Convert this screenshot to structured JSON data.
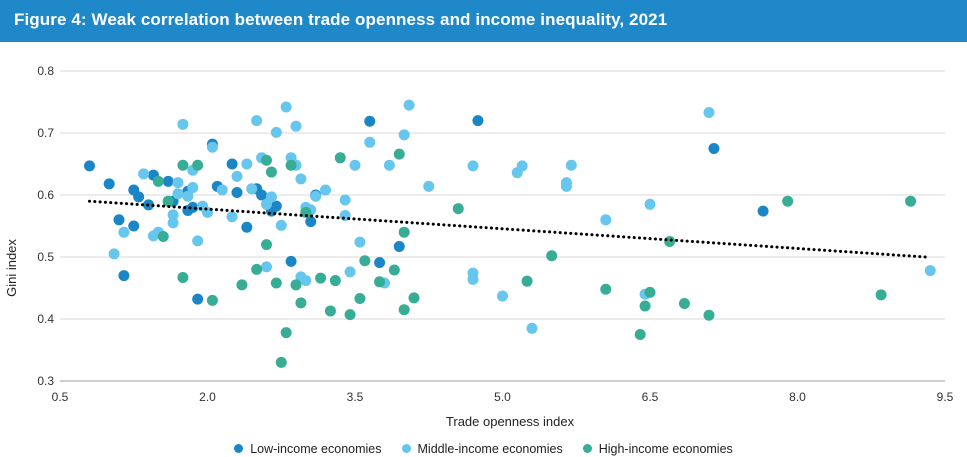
{
  "title": "Figure 4: Weak correlation between trade openness and income inequality, 2021",
  "colors": {
    "title_bar": "#1e88c8",
    "low": "#1b86c6",
    "middle": "#66c6ee",
    "high": "#36ad94",
    "trend": "#000000",
    "grid": "#d9d9d9"
  },
  "chart_data": {
    "type": "scatter",
    "xlabel": "Trade openness index",
    "ylabel": "Gini index",
    "xlim": [
      0.5,
      9.5
    ],
    "ylim": [
      0.3,
      0.8
    ],
    "xticks": [
      0.5,
      2.0,
      3.5,
      5.0,
      6.5,
      8.0,
      9.5
    ],
    "xtick_labels": [
      "0.5",
      "2.0",
      "3.5",
      "5.0",
      "6.5",
      "8.0",
      "9.5"
    ],
    "yticks": [
      0.3,
      0.4,
      0.5,
      0.6,
      0.7,
      0.8
    ],
    "ytick_labels": [
      "0.3",
      "0.4",
      "0.5",
      "0.6",
      "0.7",
      "0.8"
    ],
    "grid": "horizontal",
    "legend_position": "bottom",
    "trendline": {
      "style": "dotted",
      "x": [
        0.8,
        9.3
      ],
      "y": [
        0.59,
        0.5
      ]
    },
    "series": [
      {
        "name": "Low-income economies",
        "points": [
          [
            0.8,
            0.647
          ],
          [
            1.0,
            0.618
          ],
          [
            1.1,
            0.56
          ],
          [
            1.15,
            0.47
          ],
          [
            1.25,
            0.608
          ],
          [
            1.25,
            0.55
          ],
          [
            1.3,
            0.597
          ],
          [
            1.4,
            0.584
          ],
          [
            1.45,
            0.632
          ],
          [
            1.6,
            0.622
          ],
          [
            1.65,
            0.59
          ],
          [
            1.8,
            0.575
          ],
          [
            1.8,
            0.606
          ],
          [
            1.85,
            0.58
          ],
          [
            1.9,
            0.432
          ],
          [
            2.05,
            0.682
          ],
          [
            2.1,
            0.614
          ],
          [
            2.25,
            0.65
          ],
          [
            2.3,
            0.604
          ],
          [
            2.4,
            0.548
          ],
          [
            2.5,
            0.61
          ],
          [
            2.55,
            0.6
          ],
          [
            2.65,
            0.574
          ],
          [
            2.7,
            0.582
          ],
          [
            2.85,
            0.493
          ],
          [
            3.05,
            0.557
          ],
          [
            3.1,
            0.6
          ],
          [
            3.65,
            0.719
          ],
          [
            3.75,
            0.491
          ],
          [
            3.95,
            0.517
          ],
          [
            4.75,
            0.72
          ],
          [
            7.15,
            0.675
          ],
          [
            7.65,
            0.574
          ]
        ]
      },
      {
        "name": "Middle-income economies",
        "points": [
          [
            1.05,
            0.505
          ],
          [
            1.15,
            0.54
          ],
          [
            1.35,
            0.634
          ],
          [
            1.45,
            0.534
          ],
          [
            1.5,
            0.54
          ],
          [
            1.65,
            0.568
          ],
          [
            1.65,
            0.555
          ],
          [
            1.7,
            0.602
          ],
          [
            1.7,
            0.62
          ],
          [
            1.75,
            0.714
          ],
          [
            1.8,
            0.598
          ],
          [
            1.85,
            0.612
          ],
          [
            1.85,
            0.64
          ],
          [
            1.9,
            0.526
          ],
          [
            1.95,
            0.582
          ],
          [
            2.0,
            0.572
          ],
          [
            2.05,
            0.677
          ],
          [
            2.15,
            0.608
          ],
          [
            2.25,
            0.565
          ],
          [
            2.3,
            0.63
          ],
          [
            2.4,
            0.65
          ],
          [
            2.45,
            0.61
          ],
          [
            2.5,
            0.72
          ],
          [
            2.55,
            0.66
          ],
          [
            2.6,
            0.585
          ],
          [
            2.6,
            0.484
          ],
          [
            2.65,
            0.597
          ],
          [
            2.7,
            0.701
          ],
          [
            2.75,
            0.551
          ],
          [
            2.8,
            0.742
          ],
          [
            2.85,
            0.66
          ],
          [
            2.9,
            0.711
          ],
          [
            2.9,
            0.648
          ],
          [
            2.95,
            0.626
          ],
          [
            2.95,
            0.468
          ],
          [
            3.0,
            0.58
          ],
          [
            3.0,
            0.462
          ],
          [
            3.05,
            0.576
          ],
          [
            3.1,
            0.598
          ],
          [
            3.2,
            0.608
          ],
          [
            3.4,
            0.592
          ],
          [
            3.4,
            0.567
          ],
          [
            3.45,
            0.476
          ],
          [
            3.5,
            0.648
          ],
          [
            3.55,
            0.524
          ],
          [
            3.65,
            0.685
          ],
          [
            3.8,
            0.458
          ],
          [
            3.85,
            0.648
          ],
          [
            4.0,
            0.697
          ],
          [
            4.05,
            0.745
          ],
          [
            4.25,
            0.614
          ],
          [
            4.7,
            0.474
          ],
          [
            4.7,
            0.464
          ],
          [
            4.7,
            0.647
          ],
          [
            5.0,
            0.437
          ],
          [
            5.15,
            0.636
          ],
          [
            5.2,
            0.647
          ],
          [
            5.3,
            0.385
          ],
          [
            5.65,
            0.62
          ],
          [
            5.65,
            0.614
          ],
          [
            5.7,
            0.648
          ],
          [
            6.05,
            0.56
          ],
          [
            6.45,
            0.44
          ],
          [
            6.5,
            0.585
          ],
          [
            7.1,
            0.733
          ],
          [
            9.35,
            0.478
          ]
        ]
      },
      {
        "name": "High-income economies",
        "points": [
          [
            1.5,
            0.622
          ],
          [
            1.55,
            0.533
          ],
          [
            1.6,
            0.59
          ],
          [
            1.75,
            0.467
          ],
          [
            1.75,
            0.648
          ],
          [
            1.9,
            0.648
          ],
          [
            2.05,
            0.43
          ],
          [
            2.35,
            0.455
          ],
          [
            2.5,
            0.48
          ],
          [
            2.6,
            0.52
          ],
          [
            2.6,
            0.656
          ],
          [
            2.65,
            0.637
          ],
          [
            2.7,
            0.458
          ],
          [
            2.75,
            0.33
          ],
          [
            2.8,
            0.378
          ],
          [
            2.85,
            0.648
          ],
          [
            2.9,
            0.455
          ],
          [
            2.95,
            0.426
          ],
          [
            3.0,
            0.572
          ],
          [
            3.15,
            0.466
          ],
          [
            3.25,
            0.413
          ],
          [
            3.3,
            0.462
          ],
          [
            3.35,
            0.66
          ],
          [
            3.45,
            0.407
          ],
          [
            3.55,
            0.433
          ],
          [
            3.6,
            0.494
          ],
          [
            3.75,
            0.46
          ],
          [
            3.9,
            0.479
          ],
          [
            3.95,
            0.666
          ],
          [
            4.0,
            0.54
          ],
          [
            4.0,
            0.415
          ],
          [
            4.1,
            0.434
          ],
          [
            4.55,
            0.578
          ],
          [
            5.25,
            0.461
          ],
          [
            5.5,
            0.502
          ],
          [
            6.05,
            0.448
          ],
          [
            6.4,
            0.375
          ],
          [
            6.45,
            0.421
          ],
          [
            6.5,
            0.443
          ],
          [
            6.7,
            0.525
          ],
          [
            6.85,
            0.425
          ],
          [
            7.1,
            0.406
          ],
          [
            7.9,
            0.59
          ],
          [
            8.85,
            0.439
          ],
          [
            9.15,
            0.59
          ]
        ]
      }
    ]
  }
}
